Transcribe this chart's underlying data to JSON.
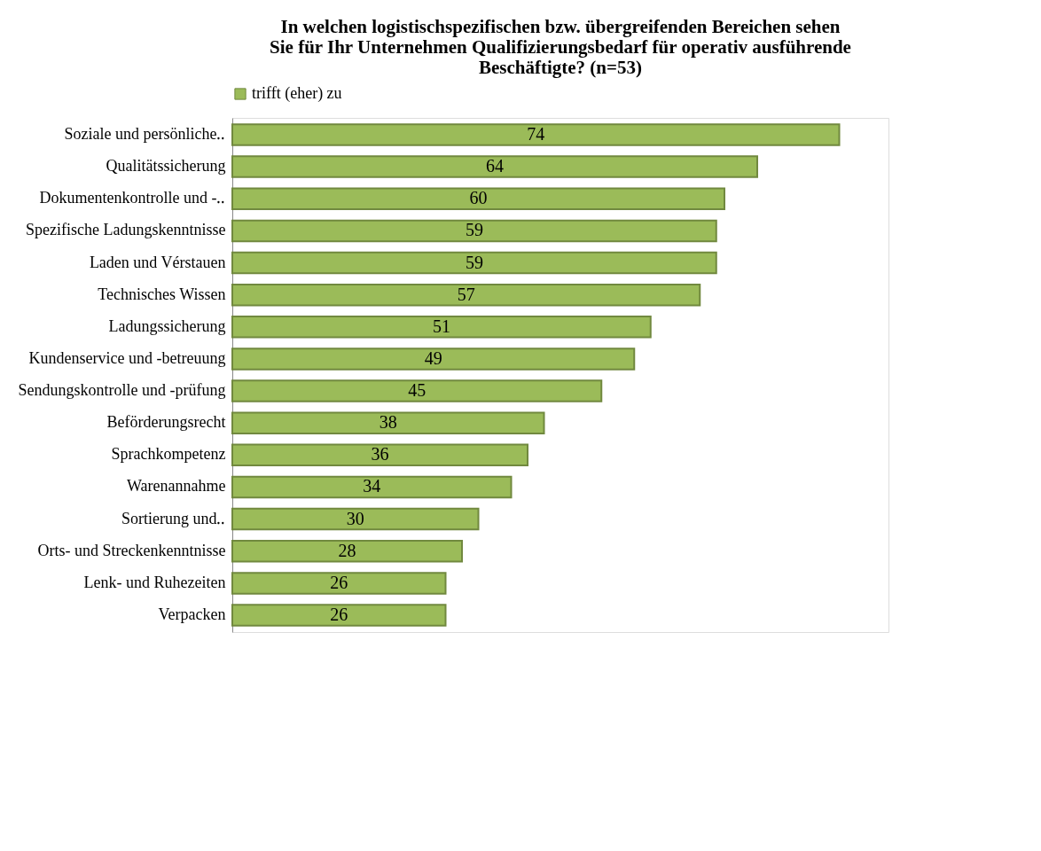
{
  "chart_data": {
    "type": "bar",
    "orientation": "horizontal",
    "title": [
      "In welchen logistischspezifischen bzw. übergreifenden Bereichen sehen",
      "Sie für Ihr Unternehmen Qualifizierungsbedarf für operativ ausführende",
      "Beschäftigte? (n=53)"
    ],
    "categories": [
      "Soziale und persönliche‥",
      "Qualitätssicherung",
      "Dokumentenkontrolle und -‥",
      "Spezifische Ladungskenntnisse",
      "Laden und Vérstauen",
      "Technisches Wissen",
      "Ladungssicherung",
      "Kundenservice und -betreuung",
      "Sendungskontrolle und -prüfung",
      "Beförderungsrecht",
      "Sprachkompetenz",
      "Warenannahme",
      "Sortierung und‥",
      "Orts- und Streckenkenntnisse",
      "Lenk- und Ruhezeiten",
      "Verpacken"
    ],
    "series": [
      {
        "name": "trifft (eher) zu",
        "color": "#9bbb59",
        "values": [
          74,
          64,
          60,
          59,
          59,
          57,
          51,
          49,
          45,
          38,
          36,
          34,
          30,
          28,
          26,
          26
        ]
      }
    ],
    "xlim": [
      0,
      80
    ],
    "tick_labels": "y",
    "data_labels": true,
    "legend": "top",
    "grid": false
  }
}
